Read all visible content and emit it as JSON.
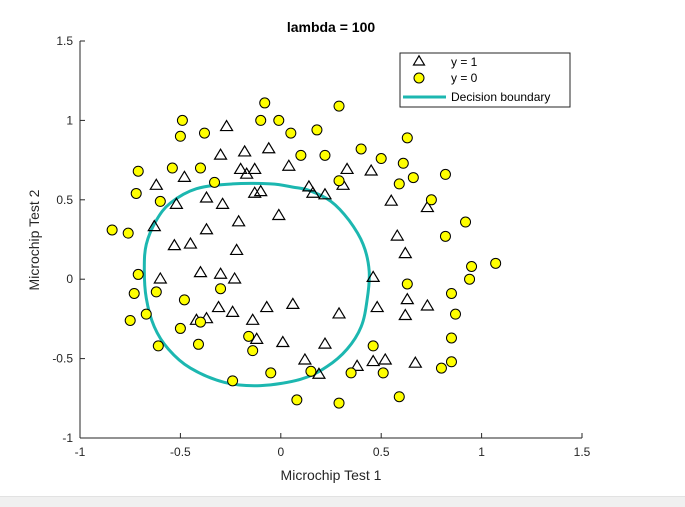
{
  "chart_data": {
    "type": "scatter",
    "title": "lambda = 100",
    "xlabel": "Microchip Test 1",
    "ylabel": "Microchip Test 2",
    "xlim": [
      -1,
      1.5
    ],
    "ylim": [
      -1,
      1.5
    ],
    "xticks": [
      -1,
      -0.5,
      0,
      0.5,
      1,
      1.5
    ],
    "xtick_labels": [
      "-1",
      "-0.5",
      "0",
      "0.5",
      "1",
      "1.5"
    ],
    "yticks": [
      -1,
      -0.5,
      0,
      0.5,
      1,
      1.5
    ],
    "ytick_labels": [
      "-1",
      "-0.5",
      "0",
      "0.5",
      "1",
      "1.5"
    ],
    "grid": false,
    "legend_position": "top-right",
    "colors": {
      "positive_edge": "#000000",
      "negative_fill": "#ffff00",
      "negative_edge": "#000000",
      "boundary": "#1cb7b0"
    },
    "series": [
      {
        "name": "y = 1",
        "marker": "triangle",
        "points": [
          [
            -0.27,
            0.96
          ],
          [
            -0.3,
            0.78
          ],
          [
            -0.18,
            0.8
          ],
          [
            -0.13,
            0.69
          ],
          [
            -0.2,
            0.69
          ],
          [
            -0.17,
            0.66
          ],
          [
            -0.06,
            0.82
          ],
          [
            -0.1,
            0.55
          ],
          [
            -0.13,
            0.54
          ],
          [
            -0.48,
            0.64
          ],
          [
            -0.62,
            0.59
          ],
          [
            -0.52,
            0.47
          ],
          [
            -0.37,
            0.51
          ],
          [
            -0.29,
            0.47
          ],
          [
            -0.21,
            0.36
          ],
          [
            -0.63,
            0.33
          ],
          [
            -0.53,
            0.21
          ],
          [
            -0.45,
            0.22
          ],
          [
            -0.37,
            0.31
          ],
          [
            -0.22,
            0.18
          ],
          [
            -0.01,
            0.4
          ],
          [
            0.04,
            0.71
          ],
          [
            0.14,
            0.58
          ],
          [
            0.16,
            0.54
          ],
          [
            0.22,
            0.53
          ],
          [
            0.31,
            0.59
          ],
          [
            0.33,
            0.69
          ],
          [
            0.45,
            0.68
          ],
          [
            0.55,
            0.49
          ],
          [
            0.58,
            0.27
          ],
          [
            0.62,
            0.16
          ],
          [
            0.73,
            0.45
          ],
          [
            -0.6,
            0.0
          ],
          [
            -0.4,
            0.04
          ],
          [
            -0.3,
            0.03
          ],
          [
            -0.23,
            0.0
          ],
          [
            -0.31,
            -0.18
          ],
          [
            -0.37,
            -0.25
          ],
          [
            -0.42,
            -0.26
          ],
          [
            -0.24,
            -0.21
          ],
          [
            -0.14,
            -0.26
          ],
          [
            -0.07,
            -0.18
          ],
          [
            0.06,
            -0.16
          ],
          [
            0.29,
            -0.22
          ],
          [
            0.46,
            0.01
          ],
          [
            0.48,
            -0.18
          ],
          [
            0.63,
            -0.13
          ],
          [
            0.62,
            -0.23
          ],
          [
            0.73,
            -0.17
          ],
          [
            -0.12,
            -0.38
          ],
          [
            0.01,
            -0.4
          ],
          [
            0.22,
            -0.41
          ],
          [
            0.12,
            -0.51
          ],
          [
            0.19,
            -0.6
          ],
          [
            0.38,
            -0.55
          ],
          [
            0.46,
            -0.52
          ],
          [
            0.52,
            -0.51
          ],
          [
            0.67,
            -0.53
          ]
        ]
      },
      {
        "name": "y = 0",
        "marker": "circle",
        "points": [
          [
            -0.49,
            1.0
          ],
          [
            -0.5,
            0.9
          ],
          [
            -0.38,
            0.92
          ],
          [
            -0.1,
            1.0
          ],
          [
            -0.08,
            1.11
          ],
          [
            -0.01,
            1.0
          ],
          [
            0.05,
            0.92
          ],
          [
            0.18,
            0.94
          ],
          [
            0.29,
            1.09
          ],
          [
            -0.54,
            0.7
          ],
          [
            -0.4,
            0.7
          ],
          [
            -0.33,
            0.61
          ],
          [
            -0.6,
            0.49
          ],
          [
            -0.72,
            0.54
          ],
          [
            -0.71,
            0.68
          ],
          [
            -0.84,
            0.31
          ],
          [
            -0.76,
            0.29
          ],
          [
            0.1,
            0.78
          ],
          [
            0.22,
            0.78
          ],
          [
            0.29,
            0.62
          ],
          [
            0.4,
            0.82
          ],
          [
            0.5,
            0.76
          ],
          [
            0.63,
            0.89
          ],
          [
            0.61,
            0.73
          ],
          [
            0.66,
            0.64
          ],
          [
            0.59,
            0.6
          ],
          [
            0.75,
            0.5
          ],
          [
            0.82,
            0.66
          ],
          [
            0.82,
            0.27
          ],
          [
            0.92,
            0.36
          ],
          [
            0.95,
            0.08
          ],
          [
            0.94,
            0.0
          ],
          [
            1.07,
            0.1
          ],
          [
            -0.71,
            0.03
          ],
          [
            -0.73,
            -0.09
          ],
          [
            -0.62,
            -0.08
          ],
          [
            -0.67,
            -0.22
          ],
          [
            -0.75,
            -0.26
          ],
          [
            -0.48,
            -0.13
          ],
          [
            -0.5,
            -0.31
          ],
          [
            -0.4,
            -0.27
          ],
          [
            -0.3,
            -0.06
          ],
          [
            -0.61,
            -0.42
          ],
          [
            -0.41,
            -0.41
          ],
          [
            -0.16,
            -0.36
          ],
          [
            -0.14,
            -0.45
          ],
          [
            0.63,
            -0.03
          ],
          [
            0.85,
            -0.09
          ],
          [
            0.87,
            -0.22
          ],
          [
            0.85,
            -0.37
          ],
          [
            0.85,
            -0.52
          ],
          [
            0.8,
            -0.56
          ],
          [
            0.46,
            -0.42
          ],
          [
            0.15,
            -0.58
          ],
          [
            0.35,
            -0.59
          ],
          [
            0.51,
            -0.59
          ],
          [
            -0.24,
            -0.64
          ],
          [
            -0.05,
            -0.59
          ],
          [
            0.08,
            -0.76
          ],
          [
            0.29,
            -0.78
          ],
          [
            0.59,
            -0.74
          ]
        ]
      },
      {
        "name": "Decision boundary",
        "marker": "line",
        "points": [
          [
            -0.24,
            0.6
          ],
          [
            -0.05,
            0.6
          ],
          [
            0.06,
            0.58
          ],
          [
            0.14,
            0.56
          ],
          [
            0.25,
            0.49
          ],
          [
            0.34,
            0.37
          ],
          [
            0.41,
            0.22
          ],
          [
            0.44,
            0.05
          ],
          [
            0.43,
            -0.13
          ],
          [
            0.4,
            -0.3
          ],
          [
            0.33,
            -0.44
          ],
          [
            0.23,
            -0.55
          ],
          [
            0.1,
            -0.63
          ],
          [
            -0.1,
            -0.67
          ],
          [
            -0.28,
            -0.65
          ],
          [
            -0.45,
            -0.56
          ],
          [
            -0.56,
            -0.44
          ],
          [
            -0.63,
            -0.3
          ],
          [
            -0.67,
            -0.12
          ],
          [
            -0.68,
            0.06
          ],
          [
            -0.67,
            0.22
          ],
          [
            -0.62,
            0.37
          ],
          [
            -0.55,
            0.48
          ],
          [
            -0.42,
            0.57
          ],
          [
            -0.24,
            0.6
          ]
        ]
      }
    ]
  }
}
